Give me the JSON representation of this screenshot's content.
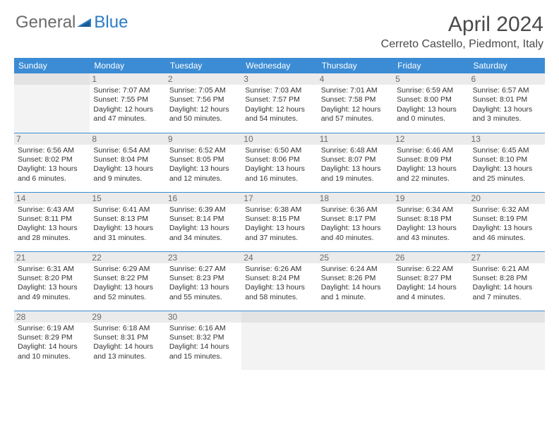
{
  "brand": {
    "general": "General",
    "blue": "Blue"
  },
  "title": "April 2024",
  "location": "Cerreto Castello, Piedmont, Italy",
  "colors": {
    "header_blue": "#3b8cd4",
    "logo_blue": "#2b7cc4",
    "logo_gray": "#6b6b6b",
    "text_dark": "#333333",
    "daynum_gray": "#6a6a6a",
    "empty_bg": "#f3f3f3",
    "daynum_bg": "#ebebeb"
  },
  "typography": {
    "title_fontsize": 30,
    "location_fontsize": 16,
    "dayheader_fontsize": 12,
    "daynum_fontsize": 12,
    "body_fontsize": 10.5
  },
  "day_headers": [
    "Sunday",
    "Monday",
    "Tuesday",
    "Wednesday",
    "Thursday",
    "Friday",
    "Saturday"
  ],
  "weeks": [
    [
      {
        "empty": true
      },
      {
        "num": "1",
        "sunrise": "Sunrise: 7:07 AM",
        "sunset": "Sunset: 7:55 PM",
        "daylight": "Daylight: 12 hours and 47 minutes."
      },
      {
        "num": "2",
        "sunrise": "Sunrise: 7:05 AM",
        "sunset": "Sunset: 7:56 PM",
        "daylight": "Daylight: 12 hours and 50 minutes."
      },
      {
        "num": "3",
        "sunrise": "Sunrise: 7:03 AM",
        "sunset": "Sunset: 7:57 PM",
        "daylight": "Daylight: 12 hours and 54 minutes."
      },
      {
        "num": "4",
        "sunrise": "Sunrise: 7:01 AM",
        "sunset": "Sunset: 7:58 PM",
        "daylight": "Daylight: 12 hours and 57 minutes."
      },
      {
        "num": "5",
        "sunrise": "Sunrise: 6:59 AM",
        "sunset": "Sunset: 8:00 PM",
        "daylight": "Daylight: 13 hours and 0 minutes."
      },
      {
        "num": "6",
        "sunrise": "Sunrise: 6:57 AM",
        "sunset": "Sunset: 8:01 PM",
        "daylight": "Daylight: 13 hours and 3 minutes."
      }
    ],
    [
      {
        "num": "7",
        "sunrise": "Sunrise: 6:56 AM",
        "sunset": "Sunset: 8:02 PM",
        "daylight": "Daylight: 13 hours and 6 minutes."
      },
      {
        "num": "8",
        "sunrise": "Sunrise: 6:54 AM",
        "sunset": "Sunset: 8:04 PM",
        "daylight": "Daylight: 13 hours and 9 minutes."
      },
      {
        "num": "9",
        "sunrise": "Sunrise: 6:52 AM",
        "sunset": "Sunset: 8:05 PM",
        "daylight": "Daylight: 13 hours and 12 minutes."
      },
      {
        "num": "10",
        "sunrise": "Sunrise: 6:50 AM",
        "sunset": "Sunset: 8:06 PM",
        "daylight": "Daylight: 13 hours and 16 minutes."
      },
      {
        "num": "11",
        "sunrise": "Sunrise: 6:48 AM",
        "sunset": "Sunset: 8:07 PM",
        "daylight": "Daylight: 13 hours and 19 minutes."
      },
      {
        "num": "12",
        "sunrise": "Sunrise: 6:46 AM",
        "sunset": "Sunset: 8:09 PM",
        "daylight": "Daylight: 13 hours and 22 minutes."
      },
      {
        "num": "13",
        "sunrise": "Sunrise: 6:45 AM",
        "sunset": "Sunset: 8:10 PM",
        "daylight": "Daylight: 13 hours and 25 minutes."
      }
    ],
    [
      {
        "num": "14",
        "sunrise": "Sunrise: 6:43 AM",
        "sunset": "Sunset: 8:11 PM",
        "daylight": "Daylight: 13 hours and 28 minutes."
      },
      {
        "num": "15",
        "sunrise": "Sunrise: 6:41 AM",
        "sunset": "Sunset: 8:13 PM",
        "daylight": "Daylight: 13 hours and 31 minutes."
      },
      {
        "num": "16",
        "sunrise": "Sunrise: 6:39 AM",
        "sunset": "Sunset: 8:14 PM",
        "daylight": "Daylight: 13 hours and 34 minutes."
      },
      {
        "num": "17",
        "sunrise": "Sunrise: 6:38 AM",
        "sunset": "Sunset: 8:15 PM",
        "daylight": "Daylight: 13 hours and 37 minutes."
      },
      {
        "num": "18",
        "sunrise": "Sunrise: 6:36 AM",
        "sunset": "Sunset: 8:17 PM",
        "daylight": "Daylight: 13 hours and 40 minutes."
      },
      {
        "num": "19",
        "sunrise": "Sunrise: 6:34 AM",
        "sunset": "Sunset: 8:18 PM",
        "daylight": "Daylight: 13 hours and 43 minutes."
      },
      {
        "num": "20",
        "sunrise": "Sunrise: 6:32 AM",
        "sunset": "Sunset: 8:19 PM",
        "daylight": "Daylight: 13 hours and 46 minutes."
      }
    ],
    [
      {
        "num": "21",
        "sunrise": "Sunrise: 6:31 AM",
        "sunset": "Sunset: 8:20 PM",
        "daylight": "Daylight: 13 hours and 49 minutes."
      },
      {
        "num": "22",
        "sunrise": "Sunrise: 6:29 AM",
        "sunset": "Sunset: 8:22 PM",
        "daylight": "Daylight: 13 hours and 52 minutes."
      },
      {
        "num": "23",
        "sunrise": "Sunrise: 6:27 AM",
        "sunset": "Sunset: 8:23 PM",
        "daylight": "Daylight: 13 hours and 55 minutes."
      },
      {
        "num": "24",
        "sunrise": "Sunrise: 6:26 AM",
        "sunset": "Sunset: 8:24 PM",
        "daylight": "Daylight: 13 hours and 58 minutes."
      },
      {
        "num": "25",
        "sunrise": "Sunrise: 6:24 AM",
        "sunset": "Sunset: 8:26 PM",
        "daylight": "Daylight: 14 hours and 1 minute."
      },
      {
        "num": "26",
        "sunrise": "Sunrise: 6:22 AM",
        "sunset": "Sunset: 8:27 PM",
        "daylight": "Daylight: 14 hours and 4 minutes."
      },
      {
        "num": "27",
        "sunrise": "Sunrise: 6:21 AM",
        "sunset": "Sunset: 8:28 PM",
        "daylight": "Daylight: 14 hours and 7 minutes."
      }
    ],
    [
      {
        "num": "28",
        "sunrise": "Sunrise: 6:19 AM",
        "sunset": "Sunset: 8:29 PM",
        "daylight": "Daylight: 14 hours and 10 minutes."
      },
      {
        "num": "29",
        "sunrise": "Sunrise: 6:18 AM",
        "sunset": "Sunset: 8:31 PM",
        "daylight": "Daylight: 14 hours and 13 minutes."
      },
      {
        "num": "30",
        "sunrise": "Sunrise: 6:16 AM",
        "sunset": "Sunset: 8:32 PM",
        "daylight": "Daylight: 14 hours and 15 minutes."
      },
      {
        "empty": true
      },
      {
        "empty": true
      },
      {
        "empty": true
      },
      {
        "empty": true
      }
    ]
  ]
}
